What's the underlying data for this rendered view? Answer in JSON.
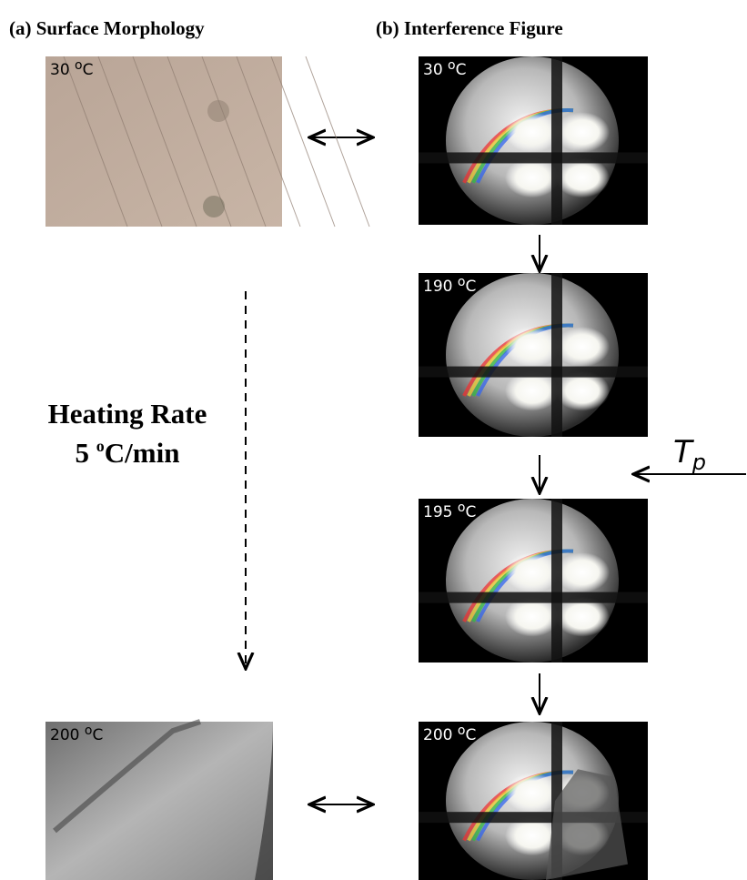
{
  "panel_a": {
    "title": "(a) Surface Morphology",
    "images": [
      {
        "temp": "30",
        "deg": "o",
        "unit": "C"
      },
      {
        "temp": "200",
        "deg": "o",
        "unit": "C"
      }
    ]
  },
  "panel_b": {
    "title": "(b) Interference Figure",
    "images": [
      {
        "temp": "30",
        "deg": "o",
        "unit": "C"
      },
      {
        "temp": "190",
        "deg": "o",
        "unit": "C"
      },
      {
        "temp": "195",
        "deg": "o",
        "unit": "C"
      },
      {
        "temp": "200",
        "deg": "o",
        "unit": "C"
      }
    ]
  },
  "heating_rate": {
    "label": "Heating Rate",
    "rate": "5",
    "deg": "o",
    "unit": "C/min"
  },
  "transition": {
    "symbol": "T",
    "subscript": "p"
  }
}
